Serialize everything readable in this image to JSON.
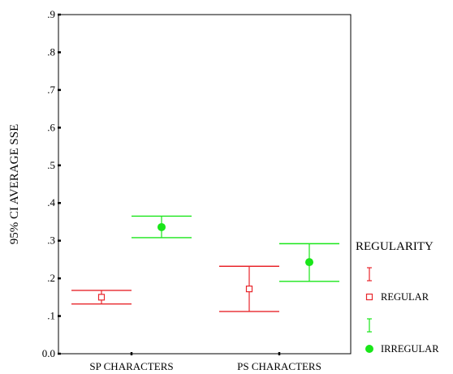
{
  "chart_data": {
    "type": "errorbar",
    "title": "",
    "xlabel": "",
    "ylabel": "95% CI AVERAGE SSE",
    "ylim": [
      0.0,
      0.9
    ],
    "y_ticks": [
      ".9",
      ".8",
      ".7",
      ".6",
      ".5",
      ".4",
      ".3",
      ".2",
      ".1",
      "0.0"
    ],
    "y_tick_values": [
      0.9,
      0.8,
      0.7,
      0.6,
      0.5,
      0.4,
      0.3,
      0.2,
      0.1,
      0.0
    ],
    "categories": [
      "SP CHARACTERS",
      "PS CHARACTERS"
    ],
    "legend": {
      "title": "REGULARITY",
      "position": "right"
    },
    "series": [
      {
        "name": "REGULAR",
        "color": "#e8262b",
        "marker": "open-square",
        "mean": [
          0.15,
          0.172
        ],
        "lower": [
          0.132,
          0.112
        ],
        "upper": [
          0.168,
          0.232
        ]
      },
      {
        "name": "IRREGULAR",
        "color": "#19e619",
        "marker": "filled-circle",
        "mean": [
          0.336,
          0.243
        ],
        "lower": [
          0.308,
          0.192
        ],
        "upper": [
          0.365,
          0.292
        ]
      }
    ]
  }
}
